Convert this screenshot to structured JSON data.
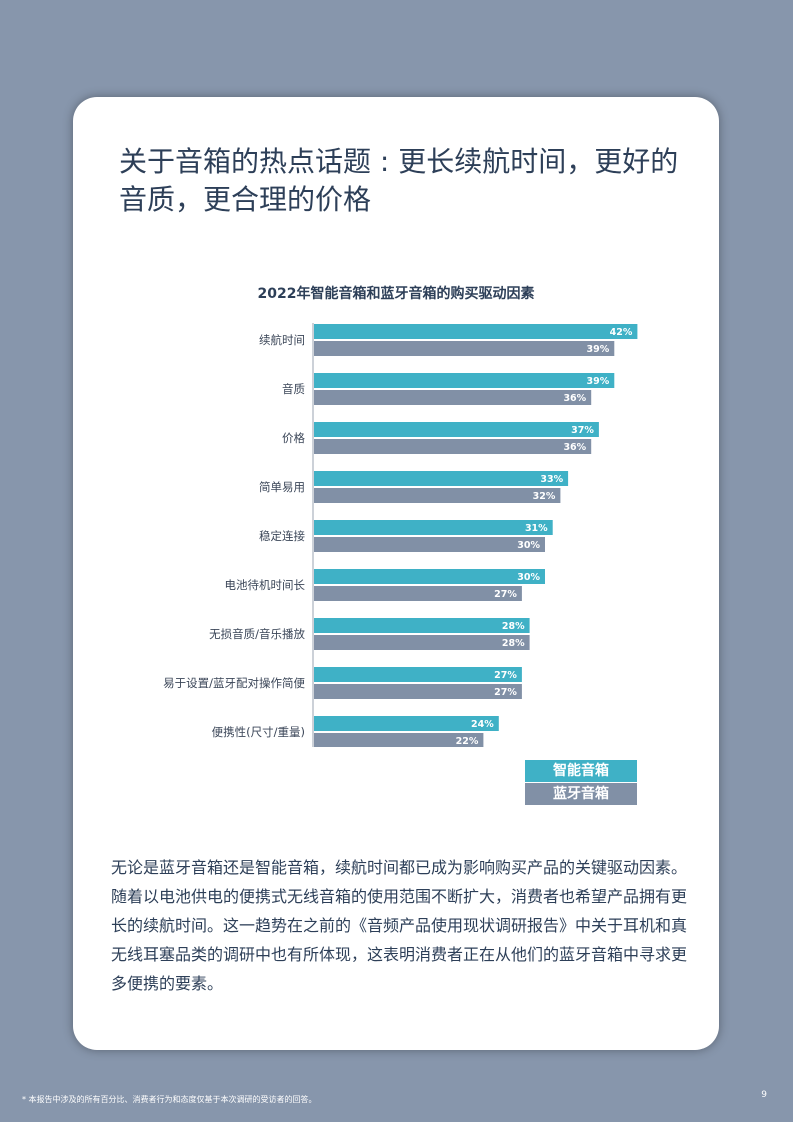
{
  "page": {
    "title": "关于音箱的热点话题 : 更长续航时间，更好的音质，更合理的价格",
    "body": "无论是蓝牙音箱还是智能音箱，续航时间都已成为影响购买产品的关键驱动因素。随着以电池供电的便携式无线音箱的使用范围不断扩大，消费者也希望产品拥有更长的续航时间。这一趋势在之前的《音频产品使用现状调研报告》中关于耳机和真无线耳塞品类的调研中也有所体现，这表明消费者正在从他们的蓝牙音箱中寻求更多便携的要素。",
    "footnote": "* 本报告中涉及的所有百分比、消费者行为和态度仅基于本次调研的受访者的回答。",
    "page_number": "9"
  },
  "chart_data": {
    "type": "bar",
    "orientation": "horizontal",
    "title": "2022年智能音箱和蓝牙音箱的购买驱动因素",
    "categories": [
      "续航时间",
      "音质",
      "价格",
      "简单易用",
      "稳定连接",
      "电池待机时间长",
      "无损音质/音乐播放",
      "易于设置/蓝牙配对操作简便",
      "便携性(尺寸/重量)"
    ],
    "series": [
      {
        "name": "智能音箱",
        "values": [
          42,
          39,
          37,
          33,
          31,
          30,
          28,
          27,
          24
        ],
        "color": "#3fb1c6"
      },
      {
        "name": "蓝牙音箱",
        "values": [
          39,
          36,
          36,
          32,
          30,
          27,
          28,
          27,
          22
        ],
        "color": "#8190a6"
      }
    ],
    "value_suffix": "%",
    "legend_position": "bottom-right",
    "grid": false
  }
}
